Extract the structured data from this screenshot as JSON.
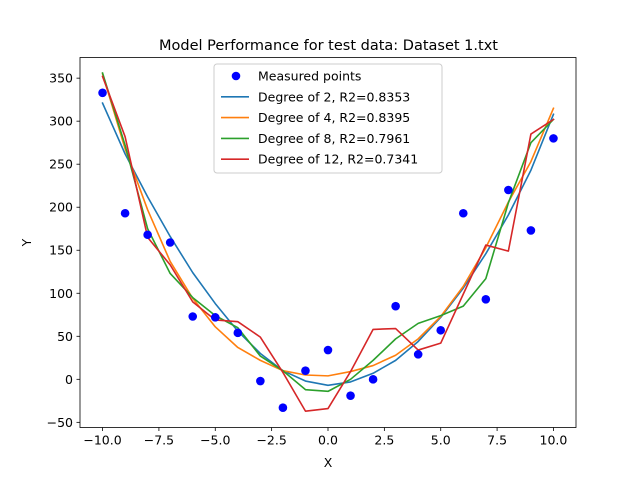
{
  "chart_data": {
    "type": "line",
    "title": "Model Performance for test data: Dataset 1.txt",
    "xlabel": "X",
    "ylabel": "Y",
    "xlim": [
      -11,
      11
    ],
    "ylim": [
      -56,
      374
    ],
    "xticks": [
      -10,
      -7.5,
      -5,
      -2.5,
      0,
      2.5,
      5,
      7.5,
      10
    ],
    "xtick_labels": [
      "−10.0",
      "−7.5",
      "−5.0",
      "−2.5",
      "0.0",
      "2.5",
      "5.0",
      "7.5",
      "10.0"
    ],
    "yticks": [
      -50,
      0,
      50,
      100,
      150,
      200,
      250,
      300,
      350
    ],
    "ytick_labels": [
      "−50",
      "0",
      "50",
      "100",
      "150",
      "200",
      "250",
      "300",
      "350"
    ],
    "grid": false,
    "legend_position": "upper-center",
    "x": [
      -10,
      -9,
      -8,
      -7,
      -6,
      -5,
      -4,
      -3,
      -2,
      -1,
      0,
      1,
      2,
      3,
      4,
      5,
      6,
      7,
      8,
      9,
      10
    ],
    "points": {
      "name": "Measured points",
      "color": "#0000ff",
      "values": [
        333,
        193,
        168,
        159,
        73,
        72,
        54,
        -2,
        -33,
        10,
        34,
        -19,
        0,
        85,
        29,
        57,
        193,
        93,
        220,
        173,
        280
      ]
    },
    "series": [
      {
        "name": "Degree of 2, R2=0.8353",
        "color": "#1f77b4",
        "values": [
          321,
          262,
          212,
          166,
          124,
          88,
          56,
          30,
          10,
          -2,
          -7,
          -3,
          7,
          22,
          44,
          72,
          106,
          146,
          191,
          243,
          308
        ]
      },
      {
        "name": "Degree of 4, R2=0.8395",
        "color": "#ff7f0e",
        "values": [
          355,
          268,
          197,
          137,
          94,
          61,
          37,
          22,
          10,
          5,
          4,
          9,
          16,
          28,
          47,
          73,
          108,
          153,
          206,
          253,
          315
        ]
      },
      {
        "name": "Degree of 8, R2=0.7961",
        "color": "#2ca02c",
        "values": [
          356,
          272,
          175,
          123,
          95,
          74,
          60,
          27,
          10,
          -12,
          -14,
          0,
          22,
          47,
          65,
          74,
          85,
          117,
          205,
          275,
          302
        ]
      },
      {
        "name": "Degree of 12, R2=0.7341",
        "color": "#d62728",
        "values": [
          352,
          282,
          165,
          133,
          90,
          69,
          67,
          49,
          8,
          -37,
          -34,
          9,
          58,
          59,
          34,
          42,
          99,
          156,
          149,
          285,
          302
        ]
      }
    ]
  }
}
